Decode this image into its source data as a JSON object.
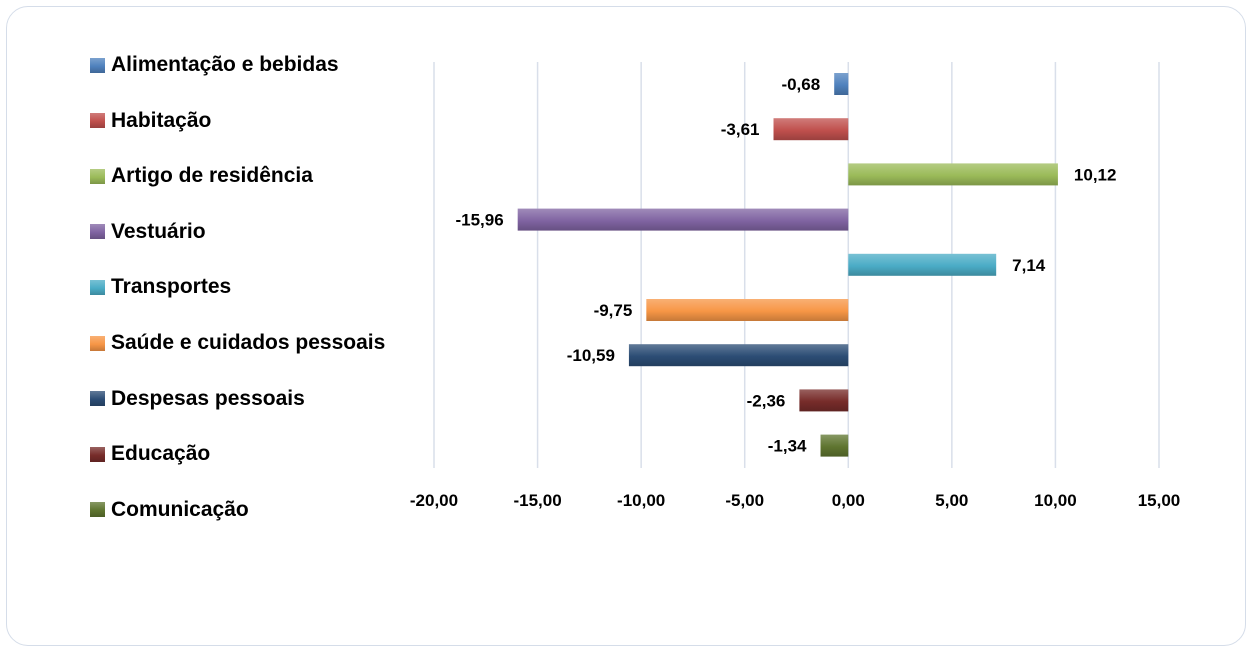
{
  "chart_data": {
    "type": "bar",
    "orientation": "horizontal",
    "categories": [
      "Alimentação e bebidas",
      "Habitação",
      "Artigo de residência",
      "Vestuário",
      "Transportes",
      "Saúde e cuidados pessoais",
      "Despesas pessoais",
      "Educação",
      "Comunicação"
    ],
    "values": [
      -0.68,
      -3.61,
      10.12,
      -15.96,
      7.14,
      -9.75,
      -10.59,
      -2.36,
      -1.34
    ],
    "value_labels": [
      "-0,68",
      "-3,61",
      "10,12",
      "-15,96",
      "7,14",
      "-9,75",
      "-10,59",
      "-2,36",
      "-1,34"
    ],
    "colors": [
      "#4f81bd",
      "#c0504d",
      "#9bbb59",
      "#8064a2",
      "#4bacc6",
      "#f79646",
      "#2c4d75",
      "#772c2a",
      "#5f7530"
    ],
    "xlim": [
      -20,
      15
    ],
    "xticks": [
      -20,
      -15,
      -10,
      -5,
      0,
      5,
      10,
      15
    ],
    "xtick_labels": [
      "-20,00",
      "-15,00",
      "-10,00",
      "-5,00",
      "0,00",
      "5,00",
      "10,00",
      "15,00"
    ],
    "grid": "vertical",
    "legend_position": "left",
    "title": "",
    "xlabel": "",
    "ylabel": ""
  }
}
